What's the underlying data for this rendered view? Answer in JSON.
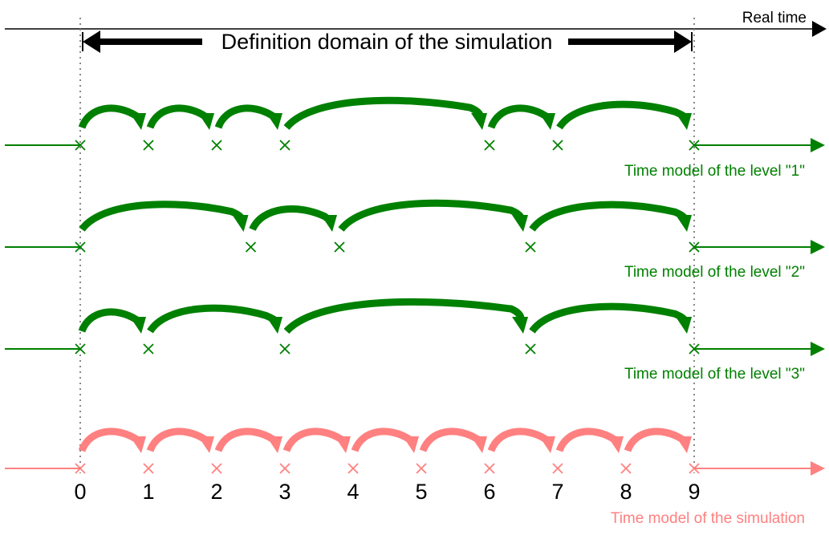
{
  "real_time_label": "Real time",
  "domain_label": "Definition domain of the simulation",
  "colors": {
    "level": "#008000",
    "simulation": "#ff8080",
    "axis": "#000000",
    "guide": "#888888"
  },
  "levels": [
    {
      "label": "Time model of the level \"1\"",
      "points": [
        0,
        1,
        2,
        3,
        6,
        7,
        9
      ]
    },
    {
      "label": "Time model of the level \"2\"",
      "points": [
        0,
        2.5,
        3.8,
        6.6,
        9
      ]
    },
    {
      "label": "Time model of the level \"3\"",
      "points": [
        0,
        1,
        3,
        6.6,
        9
      ]
    }
  ],
  "simulation": {
    "label": "Time model of the simulation",
    "points": [
      0,
      1,
      2,
      3,
      4,
      5,
      6,
      7,
      8,
      9
    ],
    "tick_labels": [
      "0",
      "1",
      "2",
      "3",
      "4",
      "5",
      "6",
      "7",
      "8",
      "9"
    ]
  }
}
